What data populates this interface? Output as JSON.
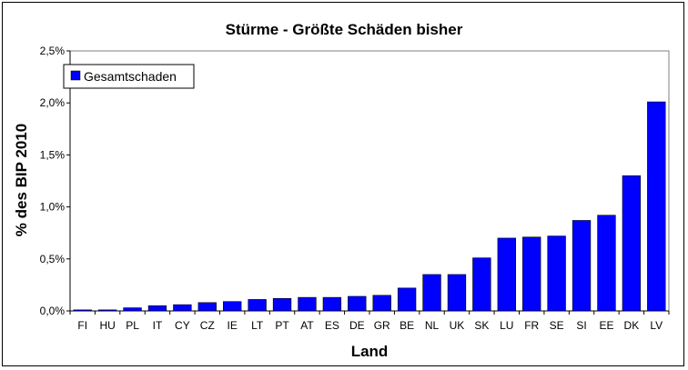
{
  "chart_data": {
    "type": "bar",
    "title": "Stürme - Größte Schäden bisher",
    "xlabel": "Land",
    "ylabel": "% des BIP 2010",
    "ylim": [
      0,
      2.5
    ],
    "yticks": [
      "0,0%",
      "0,5%",
      "1,0%",
      "1,5%",
      "2,0%",
      "2,5%"
    ],
    "grid": false,
    "legend_position": "top-left",
    "categories": [
      "FI",
      "HU",
      "PL",
      "IT",
      "CY",
      "CZ",
      "IE",
      "LT",
      "PT",
      "AT",
      "ES",
      "DE",
      "GR",
      "BE",
      "NL",
      "UK",
      "SK",
      "LU",
      "FR",
      "SE",
      "SI",
      "EE",
      "DK",
      "LV"
    ],
    "series": [
      {
        "name": "Gesamtschaden",
        "color": "#0000ff",
        "values": [
          0.01,
          0.01,
          0.03,
          0.05,
          0.06,
          0.08,
          0.09,
          0.11,
          0.12,
          0.13,
          0.13,
          0.14,
          0.15,
          0.22,
          0.35,
          0.35,
          0.51,
          0.7,
          0.71,
          0.72,
          0.87,
          0.92,
          1.3,
          2.01
        ]
      }
    ]
  }
}
